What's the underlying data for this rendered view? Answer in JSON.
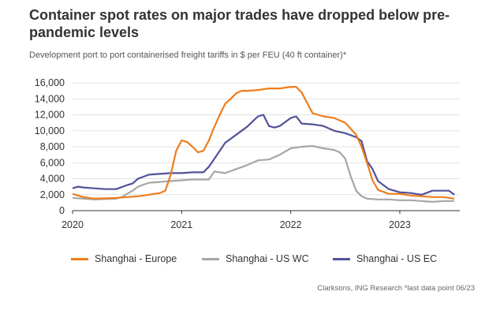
{
  "chart_data": {
    "type": "line",
    "title": "Container spot rates on major trades have dropped below pre-pandemic levels",
    "subtitle": "Development port to port containerised freight tariffs in $ per FEU (40 ft container)*",
    "ylim": [
      0,
      16000
    ],
    "yticks": [
      0,
      2000,
      4000,
      6000,
      8000,
      10000,
      12000,
      14000,
      16000
    ],
    "ytick_labels": [
      "0",
      "2,000",
      "4,000",
      "6,000",
      "8,000",
      "10,000",
      "12,000",
      "14,000",
      "16,000"
    ],
    "xlim": [
      2020.0,
      2023.55
    ],
    "xticks": [
      2020,
      2021,
      2022,
      2023
    ],
    "xtick_labels": [
      "2020",
      "2021",
      "2022",
      "2023"
    ],
    "legend_position": "bottom",
    "series": [
      {
        "name": "Shanghai - Europe",
        "color": "#ee7d1a",
        "x": [
          2020.0,
          2020.1,
          2020.2,
          2020.3,
          2020.4,
          2020.5,
          2020.6,
          2020.7,
          2020.8,
          2020.85,
          2020.9,
          2020.95,
          2021.0,
          2021.05,
          2021.1,
          2021.15,
          2021.2,
          2021.25,
          2021.3,
          2021.35,
          2021.4,
          2021.45,
          2021.5,
          2021.55,
          2021.6,
          2021.7,
          2021.8,
          2021.9,
          2022.0,
          2022.05,
          2022.1,
          2022.15,
          2022.2,
          2022.3,
          2022.4,
          2022.5,
          2022.6,
          2022.65,
          2022.7,
          2022.75,
          2022.8,
          2022.9,
          2023.0,
          2023.1,
          2023.2,
          2023.3,
          2023.4,
          2023.5
        ],
        "values": [
          2100,
          1700,
          1500,
          1550,
          1600,
          1700,
          1800,
          2000,
          2200,
          2500,
          4500,
          7500,
          8800,
          8600,
          8000,
          7300,
          7500,
          8800,
          10500,
          12000,
          13400,
          14000,
          14700,
          15000,
          15000,
          15100,
          15300,
          15300,
          15500,
          15500,
          14800,
          13500,
          12200,
          11800,
          11600,
          11000,
          9500,
          8000,
          6000,
          3800,
          2600,
          2100,
          2100,
          1900,
          1800,
          1700,
          1700,
          1500
        ]
      },
      {
        "name": "Shanghai - US WC",
        "color": "#a6a6a6",
        "x": [
          2020.0,
          2020.1,
          2020.2,
          2020.3,
          2020.4,
          2020.45,
          2020.5,
          2020.55,
          2020.6,
          2020.7,
          2020.8,
          2020.9,
          2021.0,
          2021.1,
          2021.2,
          2021.25,
          2021.3,
          2021.4,
          2021.5,
          2021.6,
          2021.7,
          2021.8,
          2021.9,
          2022.0,
          2022.1,
          2022.2,
          2022.3,
          2022.4,
          2022.45,
          2022.5,
          2022.55,
          2022.6,
          2022.65,
          2022.7,
          2022.8,
          2022.9,
          2023.0,
          2023.1,
          2023.2,
          2023.3,
          2023.4,
          2023.5
        ],
        "values": [
          1600,
          1500,
          1400,
          1450,
          1500,
          1700,
          2100,
          2500,
          3000,
          3500,
          3600,
          3700,
          3800,
          3900,
          3900,
          3900,
          4900,
          4700,
          5200,
          5700,
          6300,
          6400,
          7000,
          7800,
          8000,
          8100,
          7800,
          7600,
          7300,
          6500,
          4300,
          2500,
          1800,
          1500,
          1400,
          1400,
          1300,
          1300,
          1200,
          1100,
          1200,
          1200
        ]
      },
      {
        "name": "Shanghai - US EC",
        "color": "#525199",
        "x": [
          2020.0,
          2020.05,
          2020.1,
          2020.2,
          2020.3,
          2020.4,
          2020.5,
          2020.55,
          2020.6,
          2020.7,
          2020.8,
          2020.9,
          2021.0,
          2021.1,
          2021.2,
          2021.25,
          2021.3,
          2021.4,
          2021.5,
          2021.6,
          2021.7,
          2021.75,
          2021.8,
          2021.85,
          2021.9,
          2022.0,
          2022.05,
          2022.1,
          2022.2,
          2022.3,
          2022.4,
          2022.5,
          2022.6,
          2022.65,
          2022.7,
          2022.75,
          2022.8,
          2022.9,
          2023.0,
          2023.1,
          2023.2,
          2023.3,
          2023.4,
          2023.45,
          2023.5
        ],
        "values": [
          2800,
          3000,
          2900,
          2800,
          2700,
          2700,
          3200,
          3400,
          4000,
          4500,
          4600,
          4700,
          4700,
          4800,
          4800,
          5500,
          6500,
          8500,
          9500,
          10500,
          11800,
          12000,
          10600,
          10400,
          10600,
          11600,
          11800,
          10900,
          10800,
          10600,
          10000,
          9700,
          9200,
          8700,
          6200,
          5200,
          3700,
          2700,
          2300,
          2200,
          2000,
          2500,
          2500,
          2500,
          2000
        ]
      }
    ],
    "source": "Clarksons, ING Research *last data point 06/23"
  }
}
